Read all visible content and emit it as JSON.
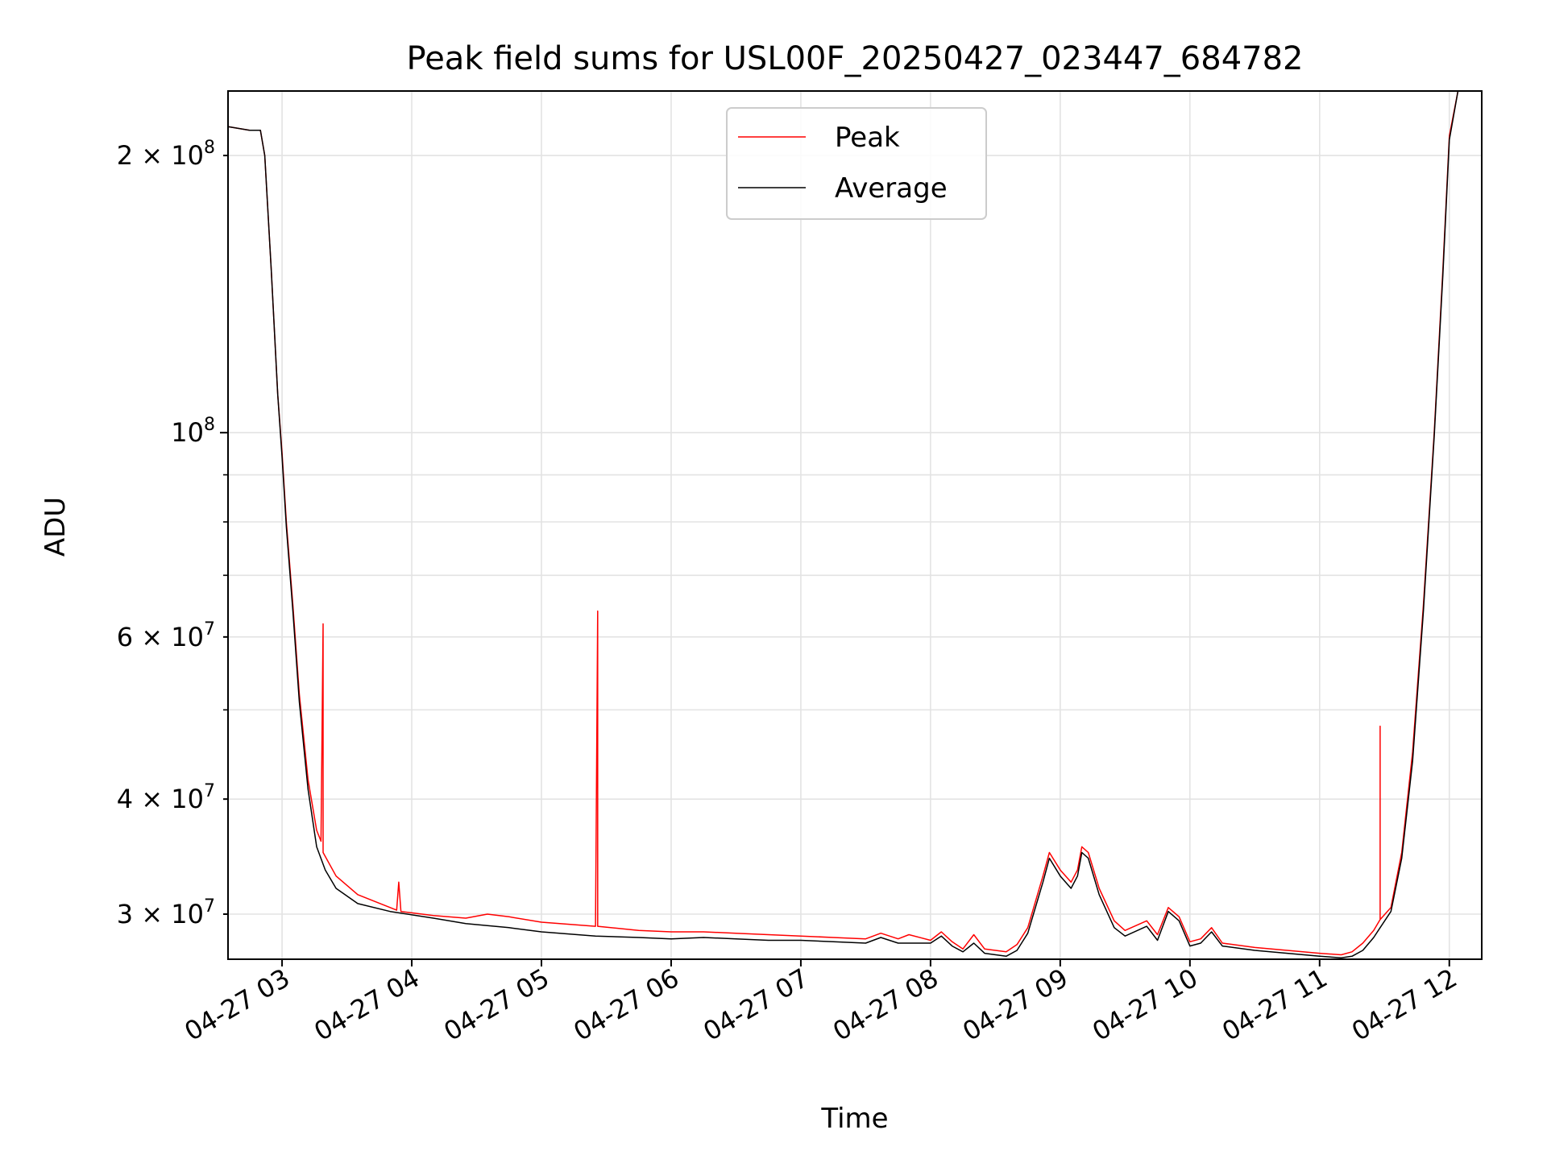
{
  "chart_data": {
    "type": "line",
    "title": "Peak field sums for USL00F_20250427_023447_684782",
    "xlabel": "Time",
    "ylabel": "ADU",
    "y_scale": "log",
    "grid": true,
    "legend_position": "top-center",
    "xlim": [
      "2025-04-27 02:35",
      "2025-04-27 12:15"
    ],
    "ylim": [
      26800000,
      235000000
    ],
    "x_ticks": [
      {
        "value": "2025-04-27 03:00",
        "label": "04-27 03"
      },
      {
        "value": "2025-04-27 04:00",
        "label": "04-27 04"
      },
      {
        "value": "2025-04-27 05:00",
        "label": "04-27 05"
      },
      {
        "value": "2025-04-27 06:00",
        "label": "04-27 06"
      },
      {
        "value": "2025-04-27 07:00",
        "label": "04-27 07"
      },
      {
        "value": "2025-04-27 08:00",
        "label": "04-27 08"
      },
      {
        "value": "2025-04-27 09:00",
        "label": "04-27 09"
      },
      {
        "value": "2025-04-27 10:00",
        "label": "04-27 10"
      },
      {
        "value": "2025-04-27 11:00",
        "label": "04-27 11"
      },
      {
        "value": "2025-04-27 12:00",
        "label": "04-27 12"
      }
    ],
    "y_ticks_major": [
      {
        "value": 100000000,
        "label_base": "10",
        "label_exp": "8"
      }
    ],
    "y_ticks_minor": [
      {
        "value": 30000000,
        "label_base": "3 × 10",
        "label_exp": "7"
      },
      {
        "value": 40000000,
        "label_base": "4 × 10",
        "label_exp": "7"
      },
      {
        "value": 60000000,
        "label_base": "6 × 10",
        "label_exp": "7"
      },
      {
        "value": 200000000,
        "label_base": "2 × 10",
        "label_exp": "8"
      }
    ],
    "y_grid_unlabeled": [
      50000000,
      70000000,
      80000000,
      90000000
    ],
    "series": [
      {
        "name": "Peak",
        "color": "#ff0000",
        "points": [
          [
            "2025-04-27 02:35",
            215000000
          ],
          [
            "2025-04-27 02:45",
            213000000
          ],
          [
            "2025-04-27 02:50",
            213000000
          ],
          [
            "2025-04-27 02:52",
            200000000
          ],
          [
            "2025-04-27 02:55",
            150000000
          ],
          [
            "2025-04-27 02:58",
            110000000
          ],
          [
            "2025-04-27 03:00",
            95000000
          ],
          [
            "2025-04-27 03:02",
            80000000
          ],
          [
            "2025-04-27 03:05",
            65000000
          ],
          [
            "2025-04-27 03:08",
            52000000
          ],
          [
            "2025-04-27 03:12",
            42000000
          ],
          [
            "2025-04-27 03:16",
            37000000
          ],
          [
            "2025-04-27 03:18",
            36000000
          ],
          [
            "2025-04-27 03:19",
            62000000
          ],
          [
            "2025-04-27 03:19",
            35000000
          ],
          [
            "2025-04-27 03:25",
            33000000
          ],
          [
            "2025-04-27 03:35",
            31500000
          ],
          [
            "2025-04-27 03:50",
            30500000
          ],
          [
            "2025-04-27 03:53",
            30300000
          ],
          [
            "2025-04-27 03:54",
            32500000
          ],
          [
            "2025-04-27 03:55",
            30200000
          ],
          [
            "2025-04-27 04:10",
            29900000
          ],
          [
            "2025-04-27 04:25",
            29700000
          ],
          [
            "2025-04-27 04:35",
            30000000
          ],
          [
            "2025-04-27 04:45",
            29800000
          ],
          [
            "2025-04-27 05:00",
            29400000
          ],
          [
            "2025-04-27 05:25",
            29100000
          ],
          [
            "2025-04-27 05:26",
            64000000
          ],
          [
            "2025-04-27 05:26",
            29100000
          ],
          [
            "2025-04-27 05:45",
            28800000
          ],
          [
            "2025-04-27 06:00",
            28700000
          ],
          [
            "2025-04-27 06:15",
            28700000
          ],
          [
            "2025-04-27 06:30",
            28600000
          ],
          [
            "2025-04-27 06:45",
            28500000
          ],
          [
            "2025-04-27 07:00",
            28400000
          ],
          [
            "2025-04-27 07:15",
            28300000
          ],
          [
            "2025-04-27 07:30",
            28200000
          ],
          [
            "2025-04-27 07:37",
            28600000
          ],
          [
            "2025-04-27 07:45",
            28200000
          ],
          [
            "2025-04-27 07:50",
            28500000
          ],
          [
            "2025-04-27 08:00",
            28100000
          ],
          [
            "2025-04-27 08:05",
            28700000
          ],
          [
            "2025-04-27 08:10",
            28000000
          ],
          [
            "2025-04-27 08:15",
            27500000
          ],
          [
            "2025-04-27 08:20",
            28500000
          ],
          [
            "2025-04-27 08:25",
            27500000
          ],
          [
            "2025-04-27 08:35",
            27300000
          ],
          [
            "2025-04-27 08:40",
            27800000
          ],
          [
            "2025-04-27 08:45",
            29000000
          ],
          [
            "2025-04-27 08:52",
            33000000
          ],
          [
            "2025-04-27 08:55",
            35000000
          ],
          [
            "2025-04-27 09:00",
            33500000
          ],
          [
            "2025-04-27 09:05",
            32500000
          ],
          [
            "2025-04-27 09:08",
            33500000
          ],
          [
            "2025-04-27 09:10",
            35500000
          ],
          [
            "2025-04-27 09:13",
            35000000
          ],
          [
            "2025-04-27 09:18",
            32000000
          ],
          [
            "2025-04-27 09:25",
            29500000
          ],
          [
            "2025-04-27 09:30",
            28800000
          ],
          [
            "2025-04-27 09:40",
            29500000
          ],
          [
            "2025-04-27 09:45",
            28500000
          ],
          [
            "2025-04-27 09:50",
            30500000
          ],
          [
            "2025-04-27 09:55",
            29800000
          ],
          [
            "2025-04-27 10:00",
            28000000
          ],
          [
            "2025-04-27 10:05",
            28200000
          ],
          [
            "2025-04-27 10:10",
            29000000
          ],
          [
            "2025-04-27 10:15",
            27900000
          ],
          [
            "2025-04-27 10:30",
            27600000
          ],
          [
            "2025-04-27 10:45",
            27400000
          ],
          [
            "2025-04-27 11:00",
            27200000
          ],
          [
            "2025-04-27 11:10",
            27100000
          ],
          [
            "2025-04-27 11:15",
            27300000
          ],
          [
            "2025-04-27 11:20",
            27900000
          ],
          [
            "2025-04-27 11:25",
            28800000
          ],
          [
            "2025-04-27 11:28",
            29600000
          ],
          [
            "2025-04-27 11:28",
            48000000
          ],
          [
            "2025-04-27 11:28",
            29600000
          ],
          [
            "2025-04-27 11:33",
            30500000
          ],
          [
            "2025-04-27 11:38",
            35000000
          ],
          [
            "2025-04-27 11:43",
            45000000
          ],
          [
            "2025-04-27 11:48",
            65000000
          ],
          [
            "2025-04-27 11:53",
            100000000
          ],
          [
            "2025-04-27 11:57",
            150000000
          ],
          [
            "2025-04-27 12:00",
            210000000
          ],
          [
            "2025-04-27 12:04",
            235000000
          ]
        ]
      },
      {
        "name": "Average",
        "color": "#000000",
        "points": [
          [
            "2025-04-27 02:35",
            215000000
          ],
          [
            "2025-04-27 02:45",
            213000000
          ],
          [
            "2025-04-27 02:50",
            213000000
          ],
          [
            "2025-04-27 02:52",
            200000000
          ],
          [
            "2025-04-27 02:55",
            150000000
          ],
          [
            "2025-04-27 02:58",
            110000000
          ],
          [
            "2025-04-27 03:00",
            94000000
          ],
          [
            "2025-04-27 03:02",
            79000000
          ],
          [
            "2025-04-27 03:05",
            64000000
          ],
          [
            "2025-04-27 03:08",
            51000000
          ],
          [
            "2025-04-27 03:12",
            41000000
          ],
          [
            "2025-04-27 03:16",
            35500000
          ],
          [
            "2025-04-27 03:20",
            33500000
          ],
          [
            "2025-04-27 03:25",
            32000000
          ],
          [
            "2025-04-27 03:35",
            30800000
          ],
          [
            "2025-04-27 03:50",
            30200000
          ],
          [
            "2025-04-27 04:10",
            29700000
          ],
          [
            "2025-04-27 04:25",
            29300000
          ],
          [
            "2025-04-27 04:45",
            29000000
          ],
          [
            "2025-04-27 05:00",
            28700000
          ],
          [
            "2025-04-27 05:25",
            28400000
          ],
          [
            "2025-04-27 05:45",
            28300000
          ],
          [
            "2025-04-27 06:00",
            28200000
          ],
          [
            "2025-04-27 06:15",
            28300000
          ],
          [
            "2025-04-27 06:30",
            28200000
          ],
          [
            "2025-04-27 06:45",
            28100000
          ],
          [
            "2025-04-27 07:00",
            28100000
          ],
          [
            "2025-04-27 07:15",
            28000000
          ],
          [
            "2025-04-27 07:30",
            27900000
          ],
          [
            "2025-04-27 07:37",
            28300000
          ],
          [
            "2025-04-27 07:45",
            27900000
          ],
          [
            "2025-04-27 08:00",
            27900000
          ],
          [
            "2025-04-27 08:05",
            28400000
          ],
          [
            "2025-04-27 08:10",
            27700000
          ],
          [
            "2025-04-27 08:15",
            27300000
          ],
          [
            "2025-04-27 08:20",
            27900000
          ],
          [
            "2025-04-27 08:25",
            27200000
          ],
          [
            "2025-04-27 08:35",
            27000000
          ],
          [
            "2025-04-27 08:40",
            27400000
          ],
          [
            "2025-04-27 08:45",
            28600000
          ],
          [
            "2025-04-27 08:52",
            32500000
          ],
          [
            "2025-04-27 08:55",
            34500000
          ],
          [
            "2025-04-27 09:00",
            33000000
          ],
          [
            "2025-04-27 09:05",
            32000000
          ],
          [
            "2025-04-27 09:08",
            33000000
          ],
          [
            "2025-04-27 09:10",
            35000000
          ],
          [
            "2025-04-27 09:13",
            34500000
          ],
          [
            "2025-04-27 09:18",
            31500000
          ],
          [
            "2025-04-27 09:25",
            29000000
          ],
          [
            "2025-04-27 09:30",
            28400000
          ],
          [
            "2025-04-27 09:40",
            29100000
          ],
          [
            "2025-04-27 09:45",
            28100000
          ],
          [
            "2025-04-27 09:50",
            30200000
          ],
          [
            "2025-04-27 09:55",
            29500000
          ],
          [
            "2025-04-27 10:00",
            27700000
          ],
          [
            "2025-04-27 10:05",
            27900000
          ],
          [
            "2025-04-27 10:10",
            28700000
          ],
          [
            "2025-04-27 10:15",
            27700000
          ],
          [
            "2025-04-27 10:30",
            27400000
          ],
          [
            "2025-04-27 10:45",
            27200000
          ],
          [
            "2025-04-27 11:00",
            27000000
          ],
          [
            "2025-04-27 11:10",
            26900000
          ],
          [
            "2025-04-27 11:15",
            27000000
          ],
          [
            "2025-04-27 11:20",
            27400000
          ],
          [
            "2025-04-27 11:25",
            28300000
          ],
          [
            "2025-04-27 11:28",
            29000000
          ],
          [
            "2025-04-27 11:33",
            30200000
          ],
          [
            "2025-04-27 11:38",
            34500000
          ],
          [
            "2025-04-27 11:43",
            44000000
          ],
          [
            "2025-04-27 11:48",
            64000000
          ],
          [
            "2025-04-27 11:53",
            99000000
          ],
          [
            "2025-04-27 11:57",
            148000000
          ],
          [
            "2025-04-27 12:00",
            208000000
          ],
          [
            "2025-04-27 12:04",
            235000000
          ]
        ]
      }
    ]
  }
}
